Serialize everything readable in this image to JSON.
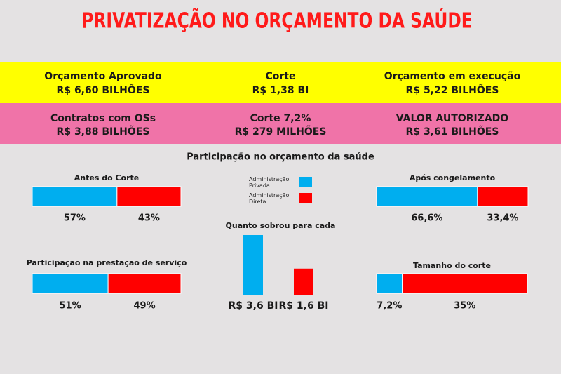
{
  "title": "PRIVATIZAÇÃO NO ORÇAMENTO DA SAÚDE",
  "info_rows": [
    [
      {
        "label": "Orçamento Aprovado",
        "value": "R$ 6,60 BILHÕES"
      },
      {
        "label": "Corte",
        "value": "R$ 1,38 BI"
      },
      {
        "label": "Orçamento em execução",
        "value": "R$ 5,22 BILHÕES"
      }
    ],
    [
      {
        "label": "Contratos com OSs",
        "value": "R$ 3,88 BILHÕES"
      },
      {
        "label": "Corte 7,2%",
        "value": "R$ 279 MILHÕES"
      },
      {
        "label": "VALOR AUTORIZADO",
        "value": "R$ 3,61 BILHÕES"
      }
    ]
  ],
  "section_title": "Participação no orçamento da saúde",
  "legend": [
    {
      "name": "Administração Privada",
      "color": "#00aeef"
    },
    {
      "name": "Administração Direta",
      "color": "#ff0000"
    }
  ],
  "chart_data": [
    {
      "type": "stacked_bar",
      "title": "Antes do Corte",
      "values": [
        57,
        43
      ],
      "value_labels": [
        "57%",
        "43%"
      ]
    },
    {
      "type": "stacked_bar",
      "title": "Após congelamento",
      "values": [
        66.6,
        33.4
      ],
      "value_labels": [
        "66,6%",
        "33,4%"
      ]
    },
    {
      "type": "stacked_bar",
      "title": "Participação na prestação de serviço",
      "values": [
        51,
        49
      ],
      "value_labels": [
        "51%",
        "49%"
      ]
    },
    {
      "type": "stacked_bar",
      "title": "Tamanho do corte",
      "values": [
        7.2,
        35
      ],
      "value_labels": [
        "7,2%",
        "35%"
      ]
    },
    {
      "type": "bar",
      "title": "Quanto sobrou para cada",
      "values": [
        3.6,
        1.6
      ],
      "value_labels": [
        "R$ 3,6 BI",
        "R$ 1,6 BI"
      ]
    }
  ]
}
